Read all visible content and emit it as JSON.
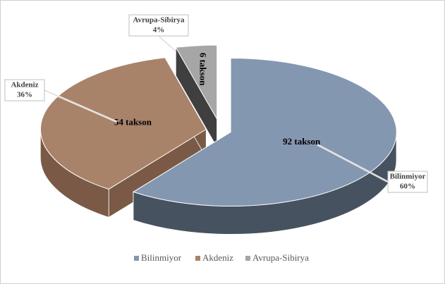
{
  "chart_data": {
    "type": "pie3d",
    "categories": [
      "Bilinmiyor",
      "Akdeniz",
      "Avrupa-Sibirya"
    ],
    "values": [
      60,
      36,
      4
    ],
    "value_labels": [
      "60%",
      "36%",
      "4%"
    ],
    "count_labels": [
      "92 takson",
      "54 takson",
      "6 takson"
    ],
    "colors": [
      "#8497b0",
      "#a8836a",
      "#a6a6a6"
    ],
    "side_colors": [
      "#46525f",
      "#7a5a46",
      "#3f3f3f"
    ],
    "legend": "bottom"
  }
}
